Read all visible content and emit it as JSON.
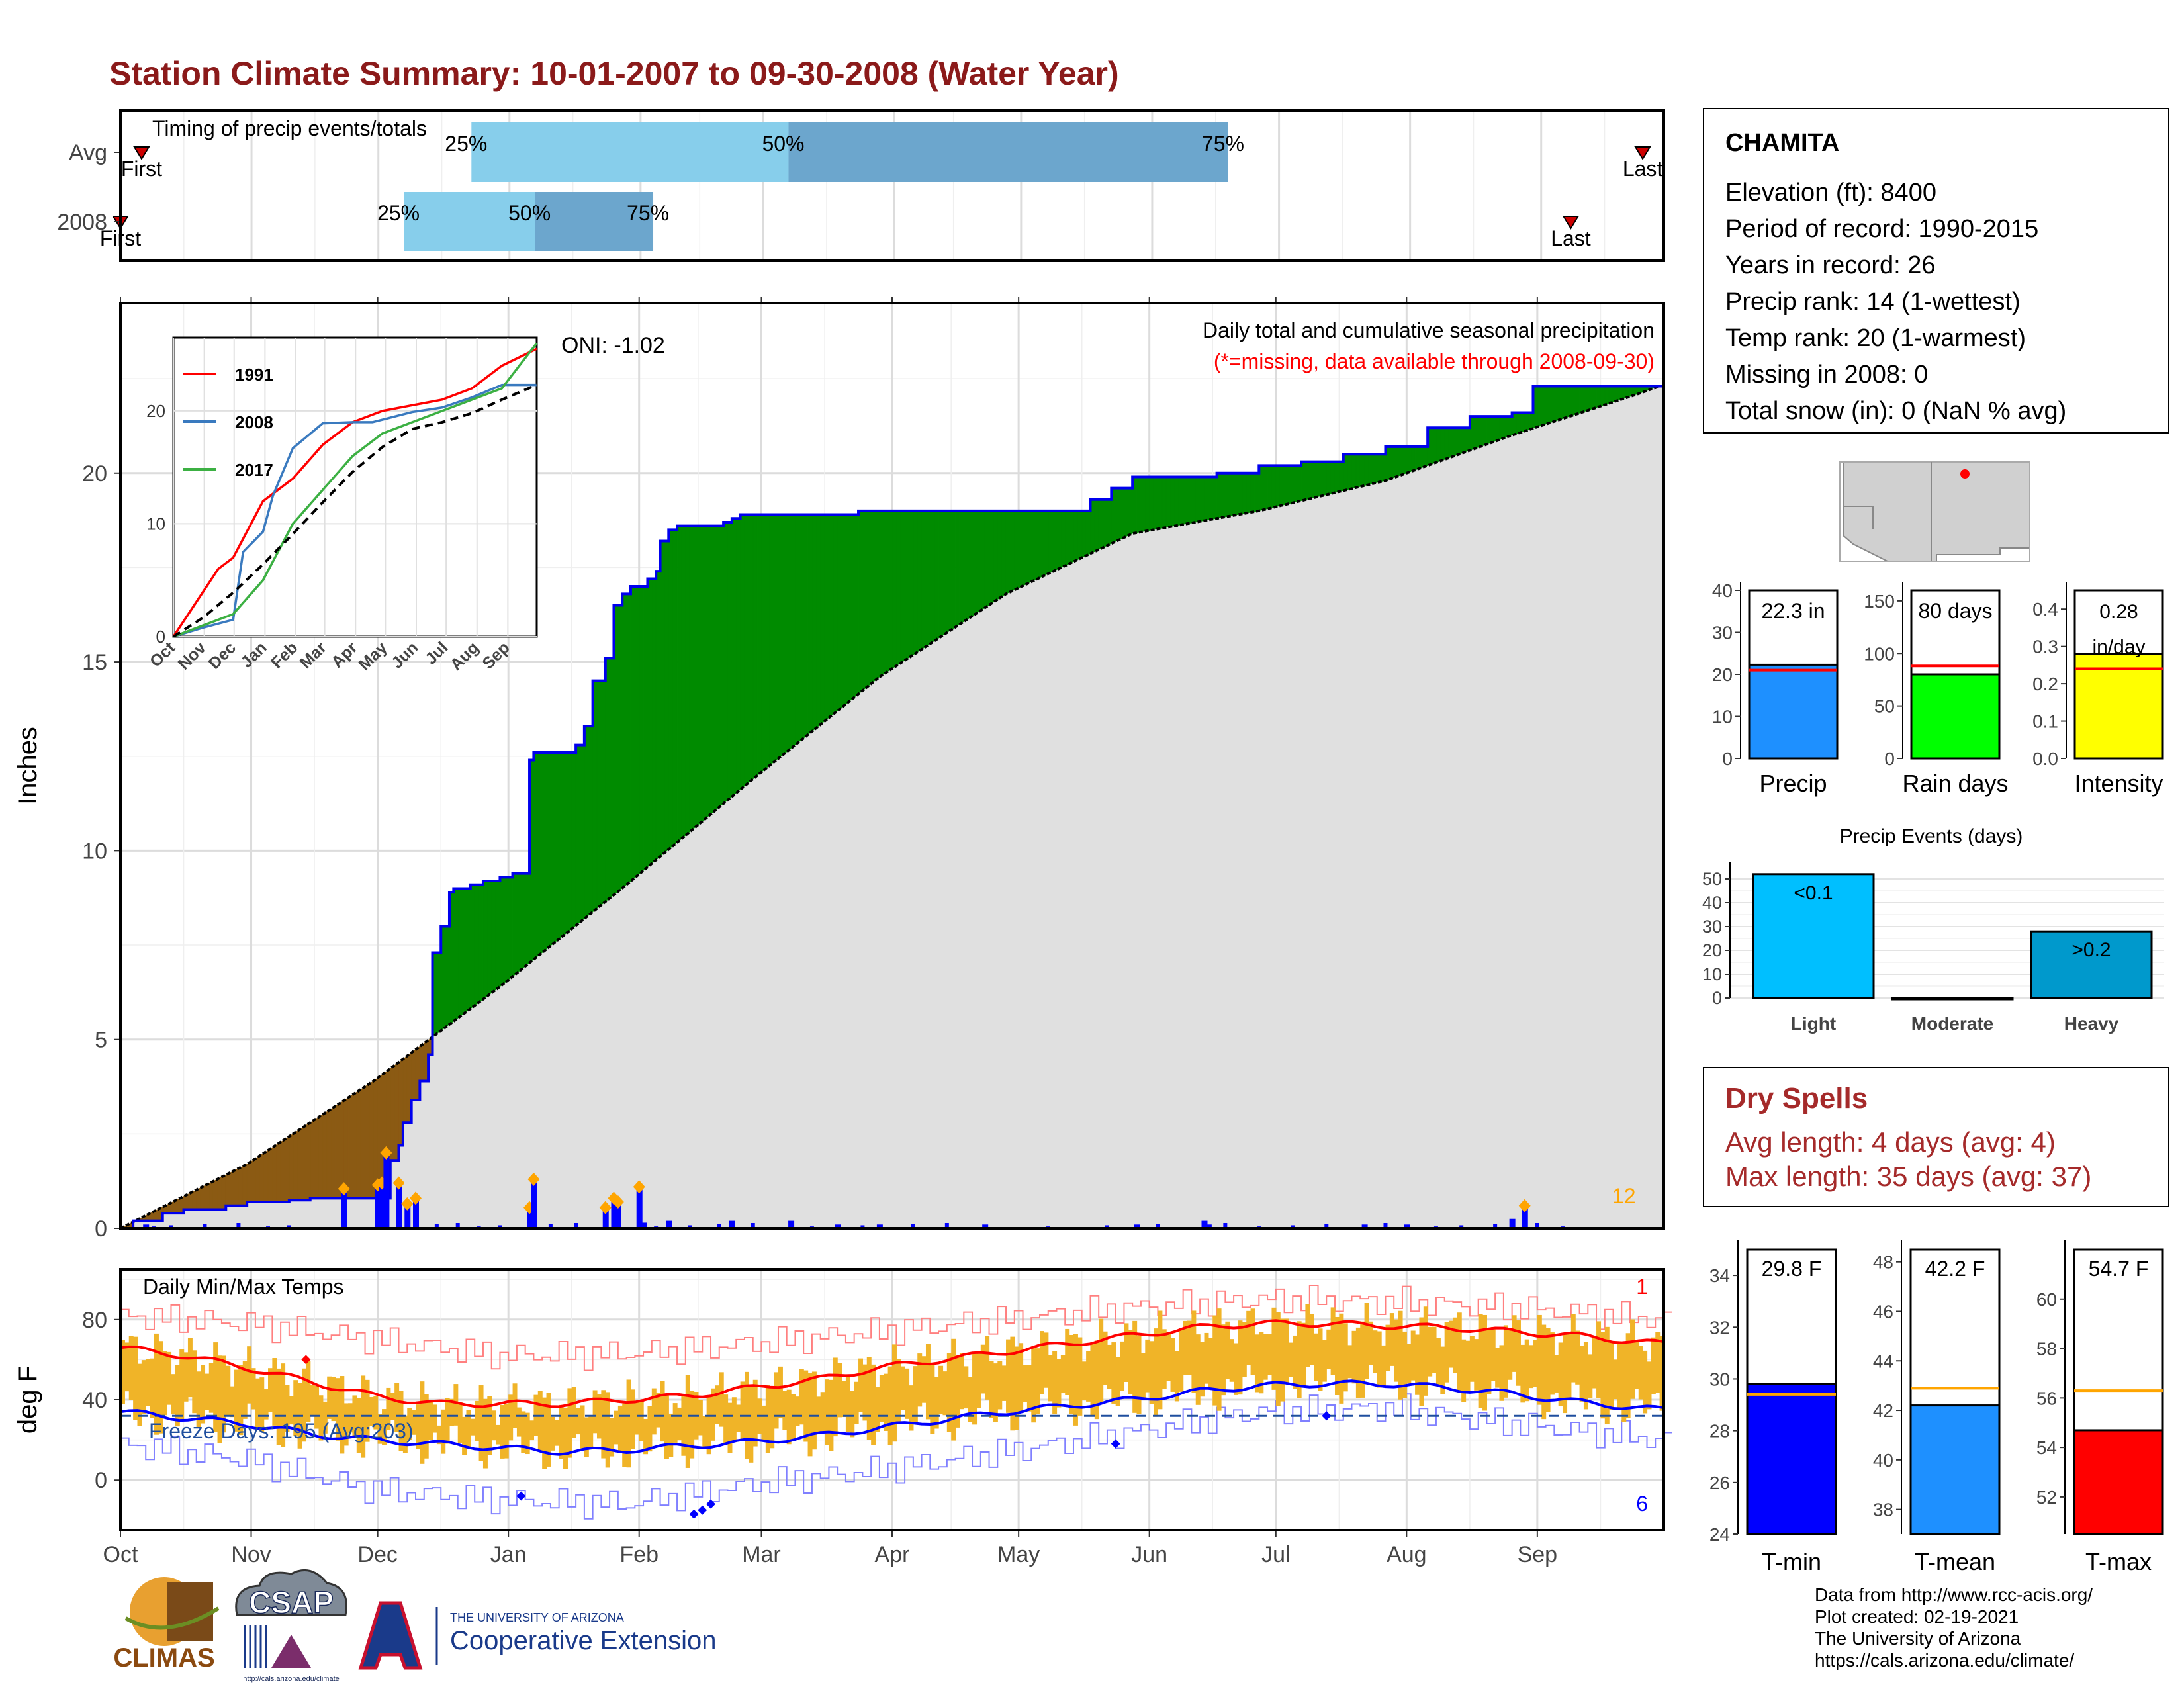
{
  "title": "Station Climate Summary: 10-01-2007 to 09-30-2008 (Water Year)",
  "colors": {
    "title": "#8b1a1a",
    "quartile_light": "#87ceeb",
    "quartile_dark": "#6ca6cd",
    "precip_above": "#008b00",
    "precip_below": "#8b5a13",
    "avg_fill": "#e0e0e0",
    "cum_line": "#0000ee",
    "daily_bar": "#0000ff",
    "marker": "#ffa500",
    "temp_bar": "#f0b428",
    "tmax_line": "#ff0000",
    "tmin_line": "#0000ff"
  },
  "timing_panel": {
    "label": "Timing of precip events/totals",
    "rows": [
      "Avg",
      "2008"
    ],
    "avg_labels": [
      "First",
      "25%",
      "50%",
      "75%",
      "Last"
    ],
    "y2008_labels": [
      "First",
      "25%",
      "50%",
      "75%",
      "Last"
    ]
  },
  "main_panel": {
    "ylabel": "Inches",
    "subtitle": "Daily total and cumulative seasonal precipitation",
    "missing_note": "(*=missing, data available through 2008-09-30)",
    "oni": "ONI: -1.02",
    "count": "12",
    "yticks": [
      "0",
      "5",
      "10",
      "15",
      "20"
    ]
  },
  "inset": {
    "legend": [
      "1991",
      "2008",
      "2017"
    ],
    "yticks": [
      "0",
      "10",
      "20"
    ],
    "months": [
      "Oct",
      "Nov",
      "Dec",
      "Jan",
      "Feb",
      "Mar",
      "Apr",
      "May",
      "Jun",
      "Jul",
      "Aug",
      "Sep"
    ]
  },
  "temp_panel": {
    "title": "Daily Min/Max Temps",
    "ylabel": "deg F",
    "freeze_text": "Freeze Days: 195 (Avg:203)",
    "count_red": "1",
    "count_blue": "6",
    "yticks": [
      "0",
      "40",
      "80"
    ]
  },
  "x_months": [
    "Oct",
    "Nov",
    "Dec",
    "Jan",
    "Feb",
    "Mar",
    "Apr",
    "May",
    "Jun",
    "Jul",
    "Aug",
    "Sep"
  ],
  "station": {
    "name": "CHAMITA",
    "lines": [
      "Elevation (ft): 8400",
      "Period of record: 1990-2015",
      "Years in record: 26",
      "Precip rank: 14 (1-wettest)",
      "Temp rank: 20 (1-warmest)",
      "Missing in 2008: 0",
      "Total snow (in): 0 (NaN % avg)"
    ]
  },
  "summary_bars": [
    {
      "label": "Precip",
      "value_text": "22.3 in",
      "yticks": [
        "0",
        "10",
        "20",
        "30",
        "40"
      ]
    },
    {
      "label": "Rain days",
      "value_text": "80 days",
      "yticks": [
        "0",
        "50",
        "100",
        "150"
      ]
    },
    {
      "label": "Intensity",
      "value_text": "0.28 in/day",
      "yticks": [
        "0.0",
        "0.1",
        "0.2",
        "0.3",
        "0.4"
      ]
    }
  ],
  "events": {
    "title": "Precip Events (days)",
    "yticks": [
      "0",
      "10",
      "20",
      "30",
      "40",
      "50"
    ]
  },
  "dry_spells": {
    "title": "Dry Spells",
    "avg_line": "Avg length: 4 days (avg: 4)",
    "max_line": "Max length: 35 days (avg: 37)"
  },
  "temp_bars": [
    {
      "label": "T-min",
      "value_text": "29.8 F",
      "yticks": [
        "24",
        "26",
        "28",
        "30",
        "32",
        "34"
      ]
    },
    {
      "label": "T-mean",
      "value_text": "42.2 F",
      "yticks": [
        "38",
        "40",
        "42",
        "44",
        "46",
        "48"
      ]
    },
    {
      "label": "T-max",
      "value_text": "54.7 F",
      "yticks": [
        "52",
        "54",
        "56",
        "58",
        "60"
      ]
    }
  ],
  "credits": [
    "Data from http://www.rcc-acis.org/",
    "Plot created: 02-19-2021",
    "The University of Arizona",
    "https://cals.arizona.edu/climate/"
  ],
  "logos": {
    "climas": "CLIMAS",
    "csap": "CSAP",
    "csap_url": "http://cals.arizona.edu/climate",
    "ua_small": "THE UNIVERSITY OF ARIZONA",
    "ua_big": "Cooperative Extension"
  },
  "chart_data": [
    {
      "type": "bar",
      "name": "timing",
      "rows": [
        "Avg",
        "2008"
      ],
      "xlim_days": [
        0,
        365
      ],
      "quartile_days": {
        "Avg": {
          "first": 5,
          "q25": 83,
          "q50": 158,
          "q75": 262,
          "last": 360
        },
        "2008": {
          "first": 0,
          "q25": 67,
          "q50": 98,
          "q75": 126,
          "last": 343
        }
      }
    },
    {
      "type": "area",
      "title": "Daily total and cumulative seasonal precipitation",
      "ylabel": "Inches",
      "ylim": [
        0,
        24.5
      ],
      "xlim_days": [
        0,
        366
      ],
      "x_labels": [
        "Oct",
        "Nov",
        "Dec",
        "Jan",
        "Feb",
        "Mar",
        "Apr",
        "May",
        "Jun",
        "Jul",
        "Aug",
        "Sep"
      ],
      "cumulative_2008": {
        "day": [
          0,
          3,
          10,
          15,
          25,
          30,
          40,
          45,
          50,
          55,
          58,
          60,
          62,
          64,
          66,
          67,
          69,
          71,
          73,
          74,
          76,
          78,
          79,
          81,
          83,
          85,
          86,
          88,
          90,
          93,
          96,
          97,
          98,
          100,
          102,
          105,
          108,
          110,
          112,
          115,
          117,
          119,
          121,
          122,
          123,
          125,
          126,
          127,
          128,
          130,
          132,
          135,
          138,
          140,
          143,
          145,
          147,
          150,
          153,
          160,
          170,
          175,
          180,
          190,
          200,
          210,
          230,
          235,
          240,
          250,
          255,
          260,
          270,
          280,
          290,
          300,
          310,
          320,
          330,
          334,
          335,
          345,
          355,
          365
        ],
        "cum": [
          0,
          0.2,
          0.4,
          0.5,
          0.6,
          0.7,
          0.75,
          0.8,
          0.8,
          0.8,
          0.8,
          0.8,
          0.8,
          1.8,
          2.2,
          2.8,
          3.4,
          3.9,
          4.6,
          7.3,
          8.0,
          8.9,
          9.0,
          9.0,
          9.1,
          9.1,
          9.2,
          9.2,
          9.3,
          9.4,
          9.4,
          12.4,
          12.6,
          12.6,
          12.6,
          12.6,
          12.8,
          13.3,
          14.5,
          15.1,
          16.5,
          16.8,
          17.0,
          17.0,
          17.0,
          17.2,
          17.2,
          17.4,
          18.2,
          18.5,
          18.6,
          18.6,
          18.6,
          18.6,
          18.7,
          18.8,
          18.9,
          18.9,
          18.9,
          18.9,
          18.9,
          19.0,
          19.0,
          19.0,
          19.0,
          19.0,
          19.3,
          19.6,
          19.9,
          19.9,
          19.9,
          20.0,
          20.2,
          20.3,
          20.5,
          20.7,
          21.2,
          21.5,
          21.6,
          21.6,
          22.3,
          22.3,
          22.3,
          22.3
        ]
      },
      "average_cumulative": {
        "day": [
          0,
          30,
          60,
          90,
          120,
          150,
          180,
          210,
          240,
          270,
          300,
          330,
          360,
          365
        ],
        "cum": [
          0,
          1.7,
          3.9,
          6.4,
          9.1,
          11.9,
          14.6,
          16.8,
          18.4,
          19.0,
          19.8,
          21.0,
          22.1,
          22.3
        ]
      },
      "daily_precip": {
        "day": [
          6,
          53,
          61,
          62,
          63,
          66,
          68,
          70,
          97,
          98,
          115,
          117,
          118,
          123,
          124,
          130,
          145,
          159,
          170,
          180,
          205,
          241,
          257,
          258,
          295,
          305,
          330,
          333
        ],
        "value": [
          0.1,
          1.05,
          1.15,
          1.2,
          2.0,
          1.2,
          0.65,
          0.8,
          0.55,
          1.3,
          0.55,
          0.8,
          0.7,
          1.1,
          0.15,
          0.2,
          0.2,
          0.2,
          0.1,
          0.1,
          0.1,
          0.1,
          0.2,
          0.1,
          0.1,
          0.1,
          0.25,
          0.6
        ]
      },
      "annotation": "ONI: -1.02"
    },
    {
      "type": "line",
      "name": "inset cumulative comparison",
      "ylim": [
        0,
        25
      ],
      "x_labels": [
        "Oct",
        "Nov",
        "Dec",
        "Jan",
        "Feb",
        "Mar",
        "Apr",
        "May",
        "Jun",
        "Jul",
        "Aug",
        "Sep"
      ],
      "series": [
        {
          "name": "1991",
          "color": "#ff0000",
          "x": [
            0,
            30,
            45,
            60,
            90,
            120,
            150,
            180,
            210,
            240,
            270,
            300,
            330,
            365
          ],
          "y": [
            0,
            4,
            6,
            7,
            12,
            14,
            17,
            19,
            20,
            20.5,
            21,
            22,
            24,
            25.5
          ]
        },
        {
          "name": "2008",
          "color": "#3a7abf",
          "x": [
            0,
            30,
            60,
            70,
            90,
            100,
            120,
            150,
            180,
            200,
            240,
            270,
            300,
            330,
            365
          ],
          "y": [
            0,
            0.8,
            1.5,
            7.5,
            9.3,
            12.5,
            16.7,
            18.9,
            19,
            19,
            19.9,
            20.3,
            21.2,
            22.3,
            22.3
          ]
        },
        {
          "name": "2017",
          "color": "#3cb043",
          "x": [
            0,
            30,
            60,
            90,
            120,
            150,
            180,
            210,
            240,
            270,
            300,
            330,
            365
          ],
          "y": [
            0,
            1,
            2,
            5,
            10,
            13,
            16,
            18,
            19,
            20,
            21,
            22,
            26
          ]
        },
        {
          "name": "average",
          "color": "#000000",
          "x": [
            0,
            30,
            60,
            90,
            120,
            150,
            180,
            210,
            240,
            270,
            300,
            330,
            365
          ],
          "y": [
            0,
            1.7,
            3.9,
            6.4,
            9.1,
            11.9,
            14.6,
            16.8,
            18.4,
            19.0,
            19.8,
            21.0,
            22.3
          ]
        }
      ]
    },
    {
      "type": "line",
      "title": "Daily Min/Max Temps",
      "ylabel": "deg F",
      "ylim": [
        -25,
        105
      ],
      "freeze_line": 32,
      "series": [
        {
          "name": "avg_max",
          "x": [
            0,
            15,
            30,
            45,
            60,
            75,
            90,
            105,
            120,
            135,
            150,
            165,
            180,
            195,
            210,
            225,
            240,
            255,
            270,
            285,
            300,
            315,
            330,
            345,
            365
          ],
          "y": [
            66,
            62,
            56,
            49,
            42,
            38,
            38,
            38,
            40,
            42,
            46,
            50,
            56,
            60,
            64,
            68,
            72,
            76,
            78,
            78,
            77,
            76,
            74,
            72,
            68
          ]
        },
        {
          "name": "avg_min",
          "x": [
            0,
            15,
            30,
            45,
            60,
            75,
            90,
            105,
            120,
            135,
            150,
            165,
            180,
            195,
            210,
            225,
            240,
            255,
            270,
            285,
            300,
            315,
            330,
            345,
            365
          ],
          "y": [
            34,
            31,
            28,
            23,
            20,
            18,
            16,
            14,
            15,
            17,
            19,
            22,
            26,
            30,
            34,
            37,
            40,
            44,
            47,
            48,
            48,
            46,
            43,
            39,
            35
          ]
        },
        {
          "name": "record_max",
          "x": [
            0,
            30,
            60,
            90,
            120,
            150,
            180,
            210,
            240,
            270,
            300,
            330,
            365
          ],
          "y": [
            82,
            78,
            70,
            62,
            63,
            68,
            74,
            80,
            86,
            90,
            89,
            86,
            80
          ]
        },
        {
          "name": "record_min",
          "x": [
            0,
            30,
            60,
            90,
            120,
            150,
            180,
            210,
            240,
            270,
            300,
            330,
            365
          ],
          "y": [
            18,
            10,
            -5,
            -10,
            -12,
            -2,
            5,
            14,
            24,
            34,
            36,
            28,
            20
          ]
        }
      ],
      "annotation": "Freeze Days: 195 (Avg:203)"
    },
    {
      "type": "bar",
      "categories": [
        "Precip"
      ],
      "values": [
        22.3
      ],
      "average": 21,
      "ylim": [
        0,
        40
      ]
    },
    {
      "type": "bar",
      "categories": [
        "Rain days"
      ],
      "values": [
        80
      ],
      "average": 88,
      "ylim": [
        0,
        160
      ]
    },
    {
      "type": "bar",
      "categories": [
        "Intensity"
      ],
      "values": [
        0.28
      ],
      "average": 0.24,
      "ylim": [
        0,
        0.45
      ]
    },
    {
      "type": "bar",
      "title": "Precip Events (days)",
      "categories": [
        "Light",
        "Moderate",
        "Heavy"
      ],
      "values": [
        52,
        0,
        28
      ],
      "labels": [
        "<0.1",
        "",
        ">0.2"
      ],
      "ylim": [
        0,
        55
      ]
    },
    {
      "type": "bar",
      "categories": [
        "T-min"
      ],
      "values": [
        29.8
      ],
      "average": 29.4,
      "ylim": [
        24,
        35
      ]
    },
    {
      "type": "bar",
      "categories": [
        "T-mean"
      ],
      "values": [
        42.2
      ],
      "average": 42.9,
      "ylim": [
        37,
        48.5
      ]
    },
    {
      "type": "bar",
      "categories": [
        "T-max"
      ],
      "values": [
        54.7
      ],
      "average": 56.3,
      "ylim": [
        50.5,
        62
      ]
    }
  ]
}
